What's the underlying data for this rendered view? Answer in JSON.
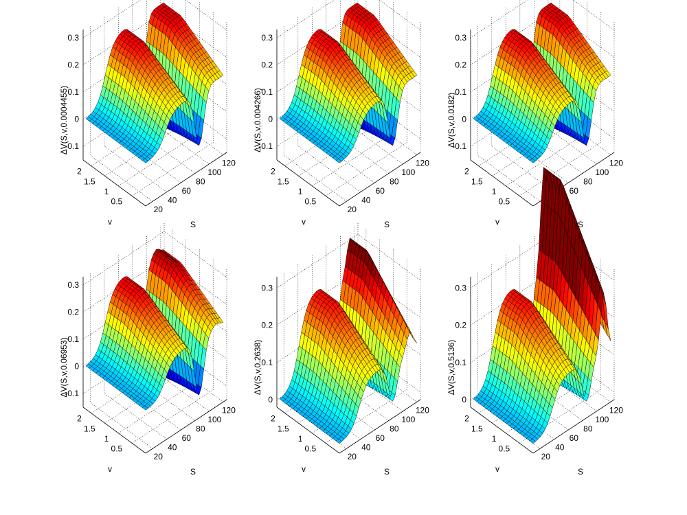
{
  "figure": {
    "background": "#ffffff"
  },
  "chart_data": [
    {
      "type": "surface",
      "zlabel": "ΔV(S,v,0.0004455)",
      "xlabel": "S",
      "ylabel": "v",
      "x_ticks": [
        "20",
        "40",
        "60",
        "80",
        "100",
        "120"
      ],
      "y_ticks": [
        "0.5",
        "1",
        "1.5",
        "2"
      ],
      "z_ticks": [
        "-0.1",
        "0",
        "0.1",
        "0.2",
        "0.3"
      ],
      "xlim": [
        10,
        125
      ],
      "ylim": [
        0,
        2.3
      ],
      "zlim": [
        -0.15,
        0.33
      ],
      "colormap": "jet",
      "shape": {
        "edge_level": 0.0,
        "plateau": 0.24,
        "trough": -0.1,
        "wave_amp": 0.0,
        "trough_center": 88
      }
    },
    {
      "type": "surface",
      "zlabel": "ΔV(S,v,0.004266)",
      "xlabel": "S",
      "ylabel": "v",
      "x_ticks": [
        "20",
        "40",
        "60",
        "80",
        "100",
        "120"
      ],
      "y_ticks": [
        "0.5",
        "1",
        "1.5",
        "2"
      ],
      "z_ticks": [
        "-0.1",
        "0",
        "0.1",
        "0.2",
        "0.3"
      ],
      "xlim": [
        10,
        125
      ],
      "ylim": [
        0,
        2.3
      ],
      "zlim": [
        -0.15,
        0.33
      ],
      "colormap": "jet",
      "shape": {
        "edge_level": 0.0,
        "plateau": 0.24,
        "trough": -0.1,
        "wave_amp": 0.0,
        "trough_center": 88
      }
    },
    {
      "type": "surface",
      "zlabel": "ΔV(S,v,0.0182)",
      "xlabel": "S",
      "ylabel": "v",
      "x_ticks": [
        "20",
        "40",
        "60",
        "80",
        "100",
        "120"
      ],
      "y_ticks": [
        "0.5",
        "1",
        "1.5",
        "2"
      ],
      "z_ticks": [
        "-0.1",
        "0",
        "0.1",
        "0.2",
        "0.3"
      ],
      "xlim": [
        10,
        125
      ],
      "ylim": [
        0,
        2.3
      ],
      "zlim": [
        -0.15,
        0.33
      ],
      "colormap": "jet",
      "shape": {
        "edge_level": 0.0,
        "plateau": 0.24,
        "trough": -0.1,
        "wave_amp": 0.0,
        "trough_center": 88
      }
    },
    {
      "type": "surface",
      "zlabel": "ΔV(S,v,0.06953)",
      "xlabel": "S",
      "ylabel": "v",
      "x_ticks": [
        "20",
        "40",
        "60",
        "80",
        "100",
        "120"
      ],
      "y_ticks": [
        "0.5",
        "1",
        "1.5",
        "2"
      ],
      "z_ticks": [
        "-0.1",
        "0",
        "0.1",
        "0.2",
        "0.3"
      ],
      "xlim": [
        10,
        125
      ],
      "ylim": [
        0,
        2.3
      ],
      "zlim": [
        -0.15,
        0.33
      ],
      "colormap": "jet",
      "shape": {
        "edge_level": 0.0,
        "plateau": 0.24,
        "trough": -0.11,
        "wave_amp": 0.02,
        "trough_center": 88
      }
    },
    {
      "type": "surface",
      "zlabel": "ΔV(S,v,0.2638)",
      "xlabel": "S",
      "ylabel": "v",
      "x_ticks": [
        "20",
        "40",
        "60",
        "80",
        "100",
        "120"
      ],
      "y_ticks": [
        "0.5",
        "1",
        "1.5",
        "2"
      ],
      "z_ticks": [
        "0",
        "0.1",
        "0.2",
        "0.3"
      ],
      "xlim": [
        10,
        125
      ],
      "ylim": [
        0,
        2.3
      ],
      "zlim": [
        -0.02,
        0.33
      ],
      "colormap": "jet",
      "shape": {
        "edge_level": 0.0,
        "plateau": 0.23,
        "trough": 0.0,
        "wave_amp": 0.08,
        "trough_center": 88
      }
    },
    {
      "type": "surface",
      "zlabel": "ΔV(S,v,0.5136)",
      "xlabel": "S",
      "ylabel": "v",
      "x_ticks": [
        "20",
        "40",
        "60",
        "80",
        "100",
        "120"
      ],
      "y_ticks": [
        "0.5",
        "1",
        "1.5",
        "2"
      ],
      "z_ticks": [
        "0",
        "0.1",
        "0.2",
        "0.3"
      ],
      "xlim": [
        10,
        125
      ],
      "ylim": [
        0,
        2.3
      ],
      "zlim": [
        -0.02,
        0.33
      ],
      "colormap": "jet",
      "shape": {
        "edge_level": 0.0,
        "plateau": 0.23,
        "trough": 0.0,
        "wave_amp": 0.27,
        "trough_center": 88
      }
    }
  ]
}
